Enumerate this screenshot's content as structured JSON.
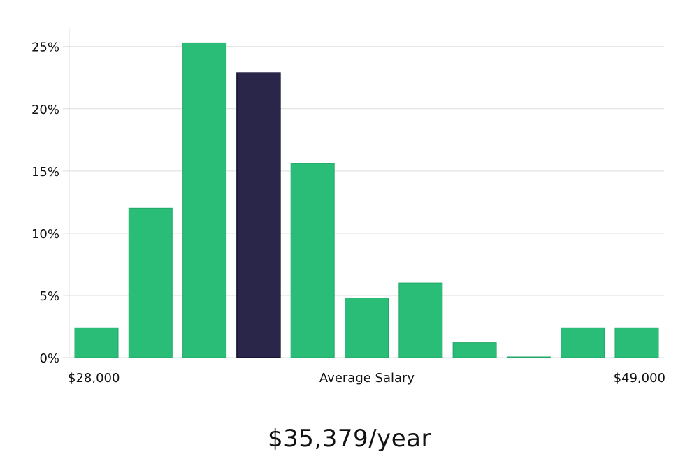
{
  "chart_data": {
    "type": "bar",
    "xlabel": "Average Salary",
    "x_min_label": "$28,000",
    "x_max_label": "$49,000",
    "values": [
      2.4,
      12.0,
      25.3,
      22.9,
      15.6,
      4.8,
      6.0,
      1.2,
      0.05,
      2.4,
      2.4
    ],
    "highlight_index": 3,
    "yticks": [
      "0%",
      "5%",
      "10%",
      "15%",
      "20%",
      "25%"
    ],
    "ytick_values": [
      0,
      5,
      10,
      15,
      20,
      25
    ],
    "ylim": [
      0,
      26.5
    ],
    "grid": true,
    "colors": {
      "bar": "#2abd78",
      "bar_stroke": "#22a865",
      "highlight": "#29264a",
      "highlight_stroke": "#12102e"
    }
  },
  "salary": {
    "value": "$35,379/year"
  }
}
